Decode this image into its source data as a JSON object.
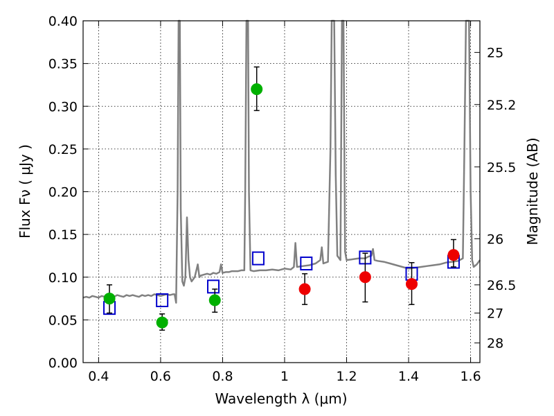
{
  "chart_data": {
    "type": "scatter",
    "xlabel": "Wavelength  λ (μm)",
    "ylabel": "Flux  Fν  ( μJy )",
    "ylabel_right": "Magnitude (AB)",
    "xlim": [
      0.35,
      1.63
    ],
    "ylim": [
      0.0,
      0.4
    ],
    "grid": true,
    "x_ticks": [
      0.4,
      0.6,
      0.8,
      1.0,
      1.2,
      1.4,
      1.6
    ],
    "x_tick_labels": [
      "0.4",
      "0.6",
      "0.8",
      "1",
      "1.2",
      "1.4",
      "1.6"
    ],
    "y_ticks": [
      0.0,
      0.05,
      0.1,
      0.15,
      0.2,
      0.25,
      0.3,
      0.35,
      0.4
    ],
    "y_tick_labels": [
      "0.00",
      "0.05",
      "0.10",
      "0.15",
      "0.20",
      "0.25",
      "0.30",
      "0.35",
      "0.40"
    ],
    "mag_ticks": [
      {
        "label": "25",
        "flux": 0.363
      },
      {
        "label": "25.2",
        "flux": 0.302
      },
      {
        "label": "25.5",
        "flux": 0.229
      },
      {
        "label": "26",
        "flux": 0.145
      },
      {
        "label": "26.5",
        "flux": 0.091
      },
      {
        "label": "27",
        "flux": 0.058
      },
      {
        "label": "28",
        "flux": 0.023
      }
    ],
    "series": [
      {
        "type": "line",
        "color": "#808080",
        "points": [
          [
            0.35,
            0.076
          ],
          [
            0.36,
            0.077
          ],
          [
            0.37,
            0.076
          ],
          [
            0.38,
            0.078
          ],
          [
            0.39,
            0.077
          ],
          [
            0.4,
            0.076
          ],
          [
            0.41,
            0.078
          ],
          [
            0.42,
            0.077
          ],
          [
            0.43,
            0.079
          ],
          [
            0.44,
            0.078
          ],
          [
            0.45,
            0.077
          ],
          [
            0.46,
            0.079
          ],
          [
            0.47,
            0.078
          ],
          [
            0.48,
            0.077
          ],
          [
            0.49,
            0.079
          ],
          [
            0.5,
            0.078
          ],
          [
            0.51,
            0.079
          ],
          [
            0.52,
            0.078
          ],
          [
            0.53,
            0.077
          ],
          [
            0.54,
            0.079
          ],
          [
            0.55,
            0.078
          ],
          [
            0.56,
            0.079
          ],
          [
            0.57,
            0.078
          ],
          [
            0.58,
            0.08
          ],
          [
            0.59,
            0.079
          ],
          [
            0.6,
            0.078
          ],
          [
            0.61,
            0.079
          ],
          [
            0.62,
            0.08
          ],
          [
            0.63,
            0.079
          ],
          [
            0.64,
            0.08
          ],
          [
            0.645,
            0.08
          ],
          [
            0.65,
            0.07
          ],
          [
            0.655,
            0.2
          ],
          [
            0.658,
            0.4
          ],
          [
            0.662,
            0.4
          ],
          [
            0.665,
            0.18
          ],
          [
            0.67,
            0.095
          ],
          [
            0.675,
            0.09
          ],
          [
            0.68,
            0.1
          ],
          [
            0.685,
            0.17
          ],
          [
            0.69,
            0.12
          ],
          [
            0.695,
            0.1
          ],
          [
            0.7,
            0.095
          ],
          [
            0.71,
            0.1
          ],
          [
            0.72,
            0.115
          ],
          [
            0.725,
            0.1
          ],
          [
            0.73,
            0.102
          ],
          [
            0.74,
            0.103
          ],
          [
            0.75,
            0.104
          ],
          [
            0.76,
            0.103
          ],
          [
            0.77,
            0.105
          ],
          [
            0.78,
            0.104
          ],
          [
            0.79,
            0.106
          ],
          [
            0.795,
            0.115
          ],
          [
            0.8,
            0.105
          ],
          [
            0.81,
            0.106
          ],
          [
            0.82,
            0.106
          ],
          [
            0.83,
            0.107
          ],
          [
            0.84,
            0.107
          ],
          [
            0.85,
            0.107
          ],
          [
            0.86,
            0.108
          ],
          [
            0.87,
            0.108
          ],
          [
            0.873,
            0.2
          ],
          [
            0.877,
            0.4
          ],
          [
            0.882,
            0.4
          ],
          [
            0.885,
            0.2
          ],
          [
            0.89,
            0.108
          ],
          [
            0.9,
            0.107
          ],
          [
            0.92,
            0.108
          ],
          [
            0.94,
            0.108
          ],
          [
            0.96,
            0.109
          ],
          [
            0.98,
            0.108
          ],
          [
            1.0,
            0.11
          ],
          [
            1.02,
            0.109
          ],
          [
            1.03,
            0.112
          ],
          [
            1.035,
            0.14
          ],
          [
            1.04,
            0.112
          ],
          [
            1.06,
            0.113
          ],
          [
            1.08,
            0.114
          ],
          [
            1.1,
            0.116
          ],
          [
            1.115,
            0.12
          ],
          [
            1.12,
            0.135
          ],
          [
            1.125,
            0.116
          ],
          [
            1.14,
            0.118
          ],
          [
            1.148,
            0.25
          ],
          [
            1.152,
            0.4
          ],
          [
            1.16,
            0.4
          ],
          [
            1.165,
            0.22
          ],
          [
            1.17,
            0.125
          ],
          [
            1.18,
            0.12
          ],
          [
            1.185,
            0.4
          ],
          [
            1.19,
            0.4
          ],
          [
            1.195,
            0.13
          ],
          [
            1.2,
            0.12
          ],
          [
            1.22,
            0.121
          ],
          [
            1.24,
            0.122
          ],
          [
            1.26,
            0.122
          ],
          [
            1.27,
            0.124
          ],
          [
            1.28,
            0.125
          ],
          [
            1.285,
            0.133
          ],
          [
            1.29,
            0.12
          ],
          [
            1.3,
            0.119
          ],
          [
            1.32,
            0.118
          ],
          [
            1.34,
            0.116
          ],
          [
            1.36,
            0.114
          ],
          [
            1.38,
            0.112
          ],
          [
            1.4,
            0.11
          ],
          [
            1.42,
            0.111
          ],
          [
            1.44,
            0.112
          ],
          [
            1.46,
            0.113
          ],
          [
            1.48,
            0.114
          ],
          [
            1.5,
            0.115
          ],
          [
            1.52,
            0.117
          ],
          [
            1.54,
            0.118
          ],
          [
            1.56,
            0.119
          ],
          [
            1.575,
            0.122
          ],
          [
            1.58,
            0.25
          ],
          [
            1.585,
            0.4
          ],
          [
            1.595,
            0.4
          ],
          [
            1.6,
            0.2
          ],
          [
            1.605,
            0.12
          ],
          [
            1.61,
            0.112
          ],
          [
            1.62,
            0.115
          ],
          [
            1.63,
            0.12
          ]
        ]
      },
      {
        "type": "scatter",
        "marker": "square",
        "color": "#0000cc",
        "points": [
          [
            0.435,
            0.064
          ],
          [
            0.605,
            0.073
          ],
          [
            0.77,
            0.089
          ],
          [
            0.915,
            0.122
          ],
          [
            1.07,
            0.116
          ],
          [
            1.26,
            0.123
          ],
          [
            1.41,
            0.104
          ],
          [
            1.545,
            0.118
          ]
        ]
      },
      {
        "type": "scatter",
        "marker": "circle",
        "color": "#00b000",
        "points": [
          [
            0.435,
            0.075
          ],
          [
            0.605,
            0.047
          ],
          [
            0.775,
            0.073
          ],
          [
            0.91,
            0.32
          ]
        ],
        "yerr_low": [
          0.058,
          0.038,
          0.059,
          0.295
        ],
        "yerr_high": [
          0.091,
          0.057,
          0.086,
          0.346
        ]
      },
      {
        "type": "scatter",
        "marker": "circle",
        "color": "#ee0000",
        "points": [
          [
            1.065,
            0.086
          ],
          [
            1.26,
            0.1
          ],
          [
            1.41,
            0.092
          ],
          [
            1.545,
            0.126
          ]
        ],
        "yerr_low": [
          0.068,
          0.071,
          0.068,
          0.112
        ],
        "yerr_high": [
          0.104,
          0.128,
          0.117,
          0.144
        ]
      }
    ]
  }
}
